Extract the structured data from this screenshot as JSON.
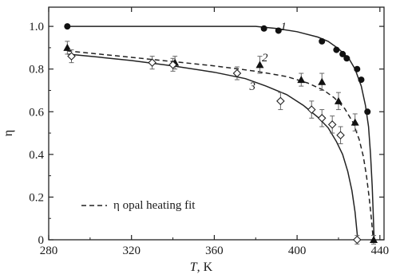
{
  "chart_data": {
    "type": "scatter",
    "xlabel_italic": "T",
    "xlabel_rest": ", K",
    "ylabel": "η",
    "xlim": [
      280,
      442
    ],
    "ylim": [
      0,
      1.09
    ],
    "x_ticks": [
      280,
      320,
      360,
      400,
      440
    ],
    "y_ticks": [
      0,
      0.2,
      0.4,
      0.6,
      0.8,
      1.0
    ],
    "x_tick_labels": [
      "280",
      "320",
      "360",
      "400",
      "440"
    ],
    "y_tick_labels": [
      "0",
      "0.2",
      "0.4",
      "0.6",
      "0.8",
      "1.0"
    ],
    "grid": false,
    "legend": {
      "position": "lower-left",
      "entries": [
        {
          "style": "dashed",
          "label": "η opal heating fit"
        }
      ]
    },
    "series": [
      {
        "name": "1",
        "marker": "filled-circle",
        "points": [
          {
            "x": 289,
            "y": 1.0
          },
          {
            "x": 384,
            "y": 0.99
          },
          {
            "x": 391,
            "y": 0.98
          },
          {
            "x": 412,
            "y": 0.93
          },
          {
            "x": 419,
            "y": 0.89
          },
          {
            "x": 422,
            "y": 0.87
          },
          {
            "x": 424,
            "y": 0.85
          },
          {
            "x": 429,
            "y": 0.8
          },
          {
            "x": 431,
            "y": 0.75
          },
          {
            "x": 434,
            "y": 0.6
          }
        ],
        "curve": [
          [
            289,
            1.0
          ],
          [
            380,
            1.0
          ],
          [
            390,
            0.99
          ],
          [
            400,
            0.975
          ],
          [
            410,
            0.95
          ],
          [
            415,
            0.93
          ],
          [
            420,
            0.895
          ],
          [
            425,
            0.85
          ],
          [
            428,
            0.8
          ],
          [
            431,
            0.72
          ],
          [
            433,
            0.63
          ],
          [
            434.5,
            0.53
          ],
          [
            435.5,
            0.4
          ],
          [
            436.3,
            0.25
          ],
          [
            436.8,
            0.12
          ],
          [
            437.2,
            0.0
          ]
        ]
      },
      {
        "name": "2",
        "marker": "filled-triangle",
        "errorbars": true,
        "curve_style": "dashed",
        "points": [
          {
            "x": 289,
            "y": 0.9,
            "err": 0.03
          },
          {
            "x": 341,
            "y": 0.83,
            "err": 0.03
          },
          {
            "x": 382,
            "y": 0.82,
            "err": 0.04
          },
          {
            "x": 402,
            "y": 0.75,
            "err": 0.03
          },
          {
            "x": 412,
            "y": 0.74,
            "err": 0.04
          },
          {
            "x": 420,
            "y": 0.65,
            "err": 0.04
          },
          {
            "x": 428,
            "y": 0.55,
            "err": 0.04
          },
          {
            "x": 437,
            "y": 0.0,
            "err": 0.02
          }
        ],
        "curve": [
          [
            289,
            0.885
          ],
          [
            320,
            0.855
          ],
          [
            340,
            0.835
          ],
          [
            360,
            0.815
          ],
          [
            380,
            0.79
          ],
          [
            395,
            0.765
          ],
          [
            405,
            0.735
          ],
          [
            413,
            0.7
          ],
          [
            418,
            0.665
          ],
          [
            423,
            0.615
          ],
          [
            427,
            0.55
          ],
          [
            430,
            0.47
          ],
          [
            432,
            0.39
          ],
          [
            433.5,
            0.3
          ],
          [
            434.8,
            0.2
          ],
          [
            436,
            0.09
          ],
          [
            436.8,
            0.0
          ]
        ]
      },
      {
        "name": "3",
        "marker": "open-diamond",
        "errorbars": true,
        "points": [
          {
            "x": 291,
            "y": 0.86,
            "err": 0.03
          },
          {
            "x": 330,
            "y": 0.83,
            "err": 0.03
          },
          {
            "x": 340,
            "y": 0.82,
            "err": 0.03
          },
          {
            "x": 371,
            "y": 0.78,
            "err": 0.03
          },
          {
            "x": 392,
            "y": 0.65,
            "err": 0.04
          },
          {
            "x": 407,
            "y": 0.61,
            "err": 0.04
          },
          {
            "x": 412,
            "y": 0.57,
            "err": 0.04
          },
          {
            "x": 417,
            "y": 0.54,
            "err": 0.04
          },
          {
            "x": 421,
            "y": 0.49,
            "err": 0.04
          },
          {
            "x": 429,
            "y": 0.0,
            "err": 0.02
          }
        ],
        "curve": [
          [
            289,
            0.87
          ],
          [
            300,
            0.86
          ],
          [
            320,
            0.84
          ],
          [
            340,
            0.815
          ],
          [
            360,
            0.785
          ],
          [
            375,
            0.755
          ],
          [
            385,
            0.72
          ],
          [
            395,
            0.68
          ],
          [
            403,
            0.63
          ],
          [
            410,
            0.575
          ],
          [
            415,
            0.525
          ],
          [
            419,
            0.46
          ],
          [
            422,
            0.4
          ],
          [
            424.5,
            0.32
          ],
          [
            426.5,
            0.23
          ],
          [
            428,
            0.13
          ],
          [
            429.3,
            0.0
          ]
        ]
      }
    ],
    "curve_number_positions": [
      {
        "name": "1",
        "x": 392,
        "y": 1.0
      },
      {
        "name": "2",
        "x": 383,
        "y": 0.855
      },
      {
        "name": "3",
        "x": 377,
        "y": 0.72
      }
    ]
  }
}
